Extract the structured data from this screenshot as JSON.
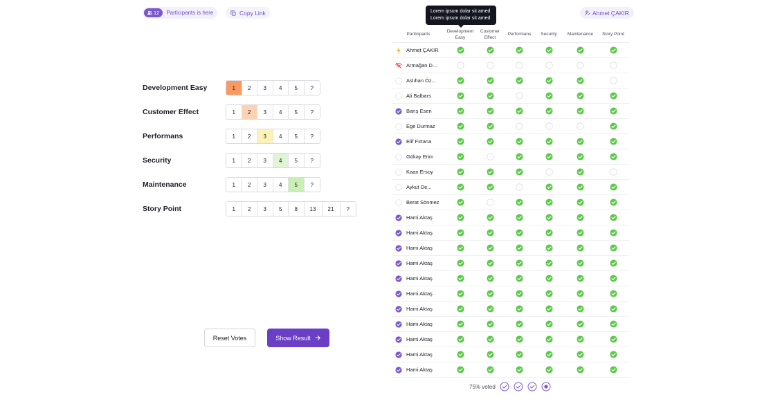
{
  "header": {
    "participant_count": "12",
    "participants_text": "Participants is here",
    "copy_link_label": "Copy Link",
    "user_name": "Ahmet ÇAKIR",
    "tooltip_line1": "Lorem ipsum dolar sit amed",
    "tooltip_line2": "Lorem ipsum dolar sit amed"
  },
  "voting": [
    {
      "label": "Development Easy",
      "options": [
        "1",
        "2",
        "3",
        "4",
        "5",
        "?"
      ],
      "selected": 0
    },
    {
      "label": "Customer Effect",
      "options": [
        "1",
        "2",
        "3",
        "4",
        "5",
        "?"
      ],
      "selected": 1
    },
    {
      "label": "Performans",
      "options": [
        "1",
        "2",
        "3",
        "4",
        "5",
        "?"
      ],
      "selected": 2
    },
    {
      "label": "Security",
      "options": [
        "1",
        "2",
        "3",
        "4",
        "5",
        "?"
      ],
      "selected": 3
    },
    {
      "label": "Maintenance",
      "options": [
        "1",
        "2",
        "3",
        "4",
        "5",
        "?"
      ],
      "selected": 4
    },
    {
      "label": "Story Point",
      "options": [
        "1",
        "2",
        "3",
        "5",
        "8",
        "13",
        "21",
        "?"
      ],
      "selected": -1
    }
  ],
  "actions": {
    "reset_label": "Reset Votes",
    "show_label": "Show Result"
  },
  "table": {
    "headers": [
      "Participants",
      "Development\nEasy",
      "Customer\nEffect",
      "Performans",
      "Security",
      "Maintenance",
      "Story Point"
    ],
    "rows": [
      {
        "name": "Ahmet ÇAKIR",
        "status": "lightning",
        "votes": [
          1,
          1,
          1,
          1,
          1,
          1
        ]
      },
      {
        "name": "Armağan D...",
        "status": "offline",
        "votes": [
          0,
          0,
          0,
          0,
          0,
          0
        ]
      },
      {
        "name": "Aslıhan Öz...",
        "status": "empty",
        "votes": [
          1,
          1,
          1,
          1,
          1,
          0
        ]
      },
      {
        "name": "Ali Balbars",
        "status": "empty",
        "votes": [
          1,
          1,
          0,
          1,
          1,
          1
        ]
      },
      {
        "name": "Barış Esen",
        "status": "done",
        "votes": [
          1,
          1,
          1,
          1,
          1,
          1
        ]
      },
      {
        "name": "Ege Durmaz",
        "status": "empty",
        "votes": [
          1,
          1,
          0,
          0,
          0,
          1
        ]
      },
      {
        "name": "Elif Fırtana",
        "status": "done",
        "votes": [
          1,
          1,
          1,
          1,
          1,
          1
        ]
      },
      {
        "name": "Gökay Erim",
        "status": "empty",
        "votes": [
          1,
          0,
          1,
          1,
          1,
          1
        ]
      },
      {
        "name": "Kaan Ersoy",
        "status": "empty",
        "votes": [
          1,
          1,
          1,
          0,
          1,
          0
        ]
      },
      {
        "name": "Aykut De...",
        "status": "empty",
        "votes": [
          1,
          1,
          0,
          1,
          1,
          1
        ]
      },
      {
        "name": "Berat Sönmez",
        "status": "empty",
        "votes": [
          1,
          0,
          1,
          1,
          1,
          1
        ]
      },
      {
        "name": "Hami Aktaş",
        "status": "done",
        "votes": [
          1,
          1,
          1,
          1,
          1,
          1
        ]
      },
      {
        "name": "Hami Aktaş",
        "status": "done",
        "votes": [
          1,
          1,
          1,
          1,
          1,
          1
        ]
      },
      {
        "name": "Hami Aktaş",
        "status": "done",
        "votes": [
          1,
          1,
          1,
          1,
          1,
          1
        ]
      },
      {
        "name": "Hami Aktaş",
        "status": "done",
        "votes": [
          1,
          1,
          1,
          1,
          1,
          1
        ]
      },
      {
        "name": "Hami Aktaş",
        "status": "done",
        "votes": [
          1,
          1,
          1,
          1,
          1,
          1
        ]
      },
      {
        "name": "Hami Aktaş",
        "status": "done",
        "votes": [
          1,
          1,
          1,
          1,
          1,
          1
        ]
      },
      {
        "name": "Hami Aktaş",
        "status": "done",
        "votes": [
          1,
          1,
          1,
          1,
          1,
          1
        ]
      },
      {
        "name": "Hami Aktaş",
        "status": "done",
        "votes": [
          1,
          1,
          1,
          1,
          1,
          1
        ]
      },
      {
        "name": "Hami Aktaş",
        "status": "done",
        "votes": [
          1,
          1,
          1,
          1,
          1,
          1
        ]
      },
      {
        "name": "Hami Aktaş",
        "status": "done",
        "votes": [
          1,
          1,
          1,
          1,
          1,
          1
        ]
      },
      {
        "name": "Hami Aktaş",
        "status": "done",
        "votes": [
          1,
          1,
          1,
          1,
          1,
          1
        ]
      }
    ]
  },
  "footer": {
    "voted_text": "75% voted",
    "steps": [
      "done",
      "done",
      "done",
      "current"
    ]
  },
  "colors": {
    "accent": "#6a3fc6",
    "check_green": "#5cc94a",
    "status_purple": "#7a57d1"
  }
}
